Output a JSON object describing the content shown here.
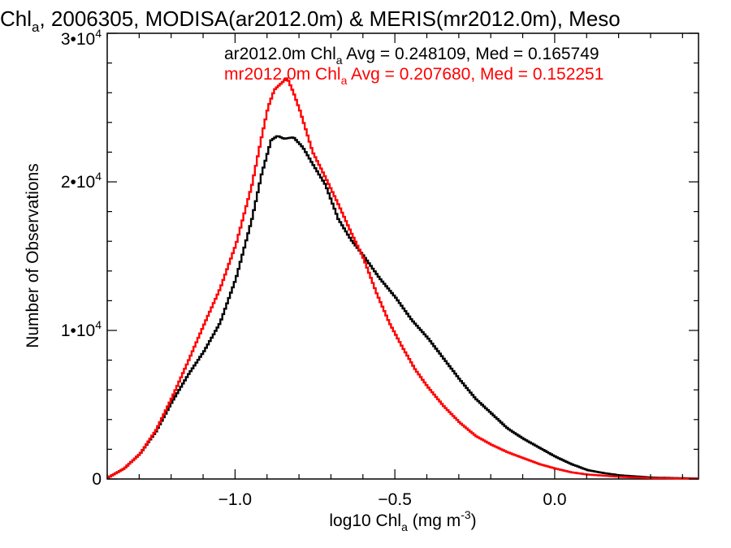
{
  "chart_data": {
    "type": "line",
    "title": {
      "pre": "Chl",
      "sub": "a",
      "post": ", 2006305, MODISA(ar2012.0m) & MERIS(mr2012.0m), Meso"
    },
    "xlabel": {
      "pre": "log10 Chl",
      "sub": "a",
      "mid": " (mg m",
      "sup": "-3",
      "post": ")"
    },
    "ylabel": "Number of Observations",
    "xlim": [
      -1.4,
      0.45
    ],
    "ylim": [
      0,
      30000
    ],
    "x_ticks": [
      {
        "value": -1.0,
        "label": "−1.0"
      },
      {
        "value": -0.5,
        "label": "−0.5"
      },
      {
        "value": 0.0,
        "label": "0.0"
      }
    ],
    "y_ticks": [
      {
        "value": 0,
        "base": "0",
        "exp": ""
      },
      {
        "value": 10000,
        "base": "1•10",
        "exp": "4"
      },
      {
        "value": 20000,
        "base": "2•10",
        "exp": "4"
      },
      {
        "value": 30000,
        "base": "3•10",
        "exp": "4"
      }
    ],
    "legend": [
      {
        "pre": "ar2012.0m Chl",
        "sub": "a",
        "post": " Avg = 0.248109, Med = 0.165749",
        "color": "#000000"
      },
      {
        "pre": "mr2012.0m Chl",
        "sub": "a",
        "post": " Avg = 0.207680, Med = 0.152251",
        "color": "#ff0000"
      }
    ],
    "series": [
      {
        "color": "#000000",
        "points": [
          [
            -1.4,
            100
          ],
          [
            -1.35,
            700
          ],
          [
            -1.3,
            1700
          ],
          [
            -1.25,
            3200
          ],
          [
            -1.2,
            5200
          ],
          [
            -1.15,
            7000
          ],
          [
            -1.1,
            8600
          ],
          [
            -1.05,
            10500
          ],
          [
            -1.0,
            13500
          ],
          [
            -0.95,
            17500
          ],
          [
            -0.92,
            20500
          ],
          [
            -0.89,
            22800
          ],
          [
            -0.87,
            23100
          ],
          [
            -0.85,
            22900
          ],
          [
            -0.82,
            23000
          ],
          [
            -0.79,
            22300
          ],
          [
            -0.76,
            21200
          ],
          [
            -0.72,
            19800
          ],
          [
            -0.68,
            17500
          ],
          [
            -0.64,
            16100
          ],
          [
            -0.6,
            15000
          ],
          [
            -0.55,
            13500
          ],
          [
            -0.5,
            12200
          ],
          [
            -0.45,
            10700
          ],
          [
            -0.4,
            9500
          ],
          [
            -0.35,
            8100
          ],
          [
            -0.3,
            6700
          ],
          [
            -0.25,
            5400
          ],
          [
            -0.2,
            4400
          ],
          [
            -0.15,
            3400
          ],
          [
            -0.1,
            2700
          ],
          [
            -0.05,
            2100
          ],
          [
            0.0,
            1500
          ],
          [
            0.05,
            1000
          ],
          [
            0.1,
            600
          ],
          [
            0.15,
            400
          ],
          [
            0.2,
            250
          ],
          [
            0.3,
            100
          ],
          [
            0.45,
            30
          ]
        ]
      },
      {
        "color": "#ff0000",
        "points": [
          [
            -1.4,
            100
          ],
          [
            -1.35,
            700
          ],
          [
            -1.3,
            1700
          ],
          [
            -1.25,
            3300
          ],
          [
            -1.2,
            5500
          ],
          [
            -1.15,
            7900
          ],
          [
            -1.1,
            10400
          ],
          [
            -1.05,
            12800
          ],
          [
            -1.0,
            15800
          ],
          [
            -0.95,
            19800
          ],
          [
            -0.92,
            23000
          ],
          [
            -0.9,
            25000
          ],
          [
            -0.88,
            26200
          ],
          [
            -0.86,
            26600
          ],
          [
            -0.84,
            27000
          ],
          [
            -0.82,
            26000
          ],
          [
            -0.8,
            24800
          ],
          [
            -0.76,
            22000
          ],
          [
            -0.72,
            20300
          ],
          [
            -0.68,
            18500
          ],
          [
            -0.64,
            16600
          ],
          [
            -0.6,
            14800
          ],
          [
            -0.56,
            12500
          ],
          [
            -0.52,
            10500
          ],
          [
            -0.48,
            8900
          ],
          [
            -0.44,
            7400
          ],
          [
            -0.4,
            6200
          ],
          [
            -0.35,
            4900
          ],
          [
            -0.3,
            3800
          ],
          [
            -0.25,
            2900
          ],
          [
            -0.2,
            2300
          ],
          [
            -0.15,
            1800
          ],
          [
            -0.1,
            1400
          ],
          [
            -0.05,
            1000
          ],
          [
            0.0,
            700
          ],
          [
            0.05,
            450
          ],
          [
            0.1,
            300
          ],
          [
            0.2,
            150
          ],
          [
            0.3,
            60
          ],
          [
            0.45,
            20
          ]
        ]
      }
    ]
  }
}
